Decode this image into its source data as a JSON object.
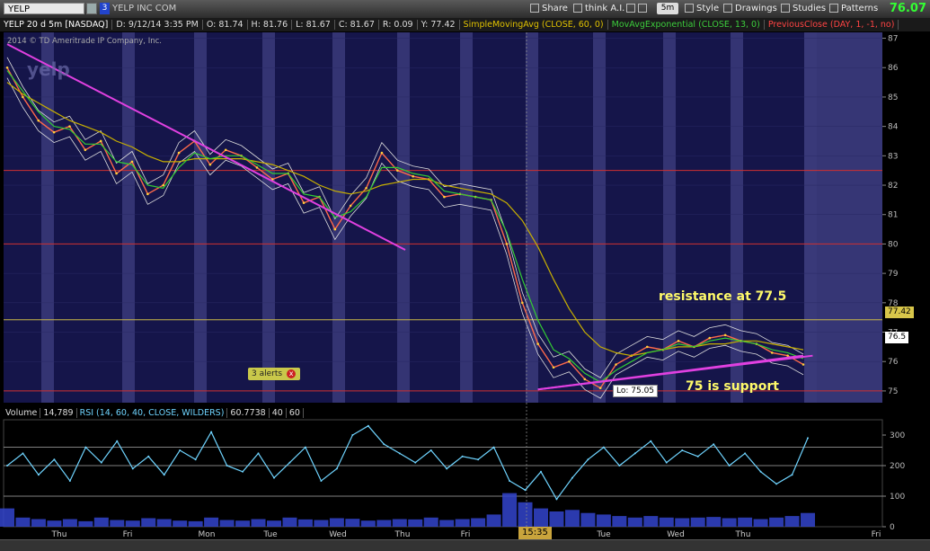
{
  "toolbar": {
    "symbol": "YELP",
    "link_number": "3",
    "company": "YELP INC COM",
    "share": "Share",
    "think_ai": "think A.I.",
    "aggregation": "5m",
    "style": "Style",
    "drawings": "Drawings",
    "studies": "Studies",
    "patterns": "Patterns",
    "last_price": "76.07"
  },
  "info_bar": {
    "symbol_period": "YELP 20 d 5m [NASDAQ]",
    "datetime": "D: 9/12/14 3:35 PM",
    "open": "O: 81.74",
    "high": "H: 81.76",
    "low": "L: 81.67",
    "close": "C: 81.67",
    "range": "R: 0.09",
    "y": "Y: 77.42",
    "sma": "SimpleMovingAvg (CLOSE, 60, 0)",
    "ema": "MovAvgExponential (CLOSE, 13, 0)",
    "prev_close": "PreviousClose (DAY, 1, -1, no)"
  },
  "copyright": "2014 © TD Ameritrade IP Company, Inc.",
  "watermark": "yelp",
  "alerts_label": "3 alerts",
  "alerts_x": "x",
  "lo_label": "Lo: 75.05",
  "annotations": {
    "resistance": "resistance at 77.5",
    "support": "75 is support"
  },
  "lower_info": {
    "volume_label": "Volume",
    "volume_value": "14,789",
    "rsi": "RSI (14, 60, 40, CLOSE, WILDERS)",
    "rsi_value": "60.7738",
    "level1": "40",
    "level2": "60"
  },
  "time_tag": "15:35",
  "colors": {
    "background": "#000000",
    "plot_bg": "#15154a",
    "session_band": "#3a3a7a",
    "trendline": "#e040e0",
    "sma": "#c8b000",
    "ema": "#33cc33",
    "prev_close": "#ff3333",
    "rsi": "#6fd4ff",
    "volume": "#3344cc",
    "annotation": "#fffa6a"
  },
  "chart_data": [
    {
      "type": "line",
      "title": "YELP 20 d 5m [NASDAQ]",
      "xlabel": "",
      "ylabel": "",
      "ylim": [
        74.6,
        87.2
      ],
      "y_ticks": [
        75,
        76,
        77,
        78,
        79,
        80,
        81,
        82,
        83,
        84,
        85,
        86,
        87
      ],
      "x_tick_labels": [
        "Thu",
        "Fri",
        "Mon",
        "Tue",
        "Wed",
        "Thu",
        "Fri",
        "15:35",
        "Tue",
        "Wed",
        "Thu",
        "Fri"
      ],
      "series": [
        {
          "name": "YELP",
          "values": [
            86.0,
            85.0,
            84.2,
            83.8,
            84.0,
            83.2,
            83.5,
            82.4,
            82.8,
            81.7,
            82.0,
            83.1,
            83.5,
            82.7,
            83.2,
            83.0,
            82.6,
            82.2,
            82.4,
            81.4,
            81.6,
            80.5,
            81.3,
            81.9,
            83.1,
            82.5,
            82.3,
            82.2,
            81.6,
            81.7,
            81.6,
            81.5,
            80.0,
            78.0,
            76.6,
            75.8,
            76.0,
            75.4,
            75.1,
            75.9,
            76.2,
            76.5,
            76.4,
            76.7,
            76.5,
            76.8,
            76.9,
            76.7,
            76.6,
            76.3,
            76.2,
            75.9
          ]
        },
        {
          "name": "SimpleMovingAvg (CLOSE, 60, 0)",
          "values": [
            85.5,
            85.1,
            84.8,
            84.5,
            84.2,
            84.0,
            83.8,
            83.5,
            83.3,
            83.0,
            82.8,
            82.8,
            82.9,
            82.9,
            82.9,
            82.9,
            82.8,
            82.7,
            82.5,
            82.3,
            82.0,
            81.8,
            81.7,
            81.8,
            82.0,
            82.1,
            82.2,
            82.2,
            82.0,
            81.9,
            81.8,
            81.7,
            81.4,
            80.8,
            79.9,
            78.8,
            77.8,
            77.0,
            76.5,
            76.3,
            76.2,
            76.3,
            76.4,
            76.5,
            76.5,
            76.6,
            76.6,
            76.7,
            76.7,
            76.6,
            76.5,
            76.4
          ]
        },
        {
          "name": "MovAvgExponential (CLOSE, 13, 0)",
          "values": [
            85.9,
            85.2,
            84.5,
            84.0,
            83.9,
            83.4,
            83.4,
            82.8,
            82.7,
            82.0,
            81.9,
            82.6,
            83.1,
            82.9,
            83.0,
            83.0,
            82.7,
            82.4,
            82.4,
            81.7,
            81.6,
            80.9,
            81.1,
            81.6,
            82.6,
            82.6,
            82.4,
            82.3,
            81.8,
            81.7,
            81.6,
            81.5,
            80.4,
            78.8,
            77.4,
            76.4,
            76.1,
            75.6,
            75.3,
            75.7,
            76.0,
            76.3,
            76.4,
            76.6,
            76.5,
            76.7,
            76.8,
            76.7,
            76.6,
            76.4,
            76.3,
            76.1
          ]
        }
      ],
      "previous_close": 82.5,
      "reference_lines": [
        82.5,
        80.0,
        77.42,
        75.0
      ],
      "trendlines": [
        {
          "from": [
            0,
            86.8
          ],
          "to": [
            25.5,
            79.8
          ]
        },
        {
          "from": [
            34,
            75.05
          ],
          "to": [
            51,
            76.2
          ]
        }
      ],
      "price_labels": [
        {
          "value": 77.42,
          "label": "77.42"
        },
        {
          "value": 76.5,
          "label": "76.5"
        }
      ],
      "lo": 75.05,
      "annotations": [
        "resistance at 77.5",
        "75 is support"
      ]
    },
    {
      "type": "line",
      "title": "RSI (14, 60, 40, CLOSE, WILDERS)",
      "ylim": [
        0,
        350
      ],
      "y_ticks": [
        0,
        100,
        200,
        300
      ],
      "series": [
        {
          "name": "RSI (14, 60, 40, CLOSE, WILDERS)",
          "values": [
            200,
            240,
            170,
            220,
            150,
            260,
            210,
            280,
            190,
            230,
            170,
            250,
            220,
            310,
            200,
            180,
            240,
            160,
            210,
            260,
            150,
            190,
            300,
            330,
            270,
            240,
            210,
            250,
            190,
            230,
            220,
            260,
            150,
            120,
            180,
            90,
            160,
            220,
            260,
            200,
            240,
            280,
            210,
            250,
            230,
            270,
            200,
            240,
            180,
            140,
            170,
            290
          ]
        },
        {
          "name": "Volume",
          "values": [
            60,
            30,
            25,
            20,
            25,
            18,
            30,
            22,
            20,
            28,
            25,
            20,
            18,
            30,
            22,
            20,
            25,
            20,
            30,
            24,
            22,
            28,
            26,
            20,
            22,
            25,
            24,
            30,
            22,
            25,
            28,
            40,
            110,
            80,
            60,
            50,
            55,
            45,
            40,
            35,
            30,
            35,
            30,
            28,
            30,
            32,
            28,
            30,
            25,
            30,
            35,
            45
          ]
        }
      ],
      "levels": [
        100,
        200,
        260
      ],
      "value": 60.7738
    }
  ]
}
